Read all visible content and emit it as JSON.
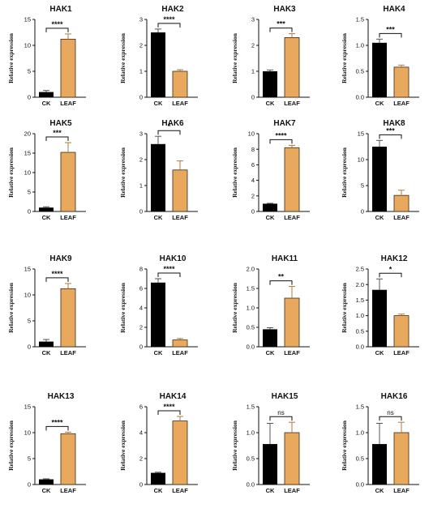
{
  "chart_data": [
    {
      "type": "bar",
      "title": "HAK1",
      "ylabel": "Relative expression",
      "categories": [
        "CK",
        "LEAF"
      ],
      "values": [
        1.0,
        11.2
      ],
      "errors": [
        0.3,
        1.0
      ],
      "ylim": [
        0,
        15
      ],
      "yticks": [
        0,
        5,
        10,
        15
      ],
      "significance": "****"
    },
    {
      "type": "bar",
      "title": "HAK2",
      "ylabel": "Relative expression",
      "categories": [
        "CK",
        "LEAF"
      ],
      "values": [
        2.5,
        1.0
      ],
      "errors": [
        0.13,
        0.06
      ],
      "ylim": [
        0,
        3
      ],
      "yticks": [
        0,
        1,
        2,
        3
      ],
      "significance": "****"
    },
    {
      "type": "bar",
      "title": "HAK3",
      "ylabel": "Relative expression",
      "categories": [
        "CK",
        "LEAF"
      ],
      "values": [
        1.0,
        2.3
      ],
      "errors": [
        0.05,
        0.15
      ],
      "ylim": [
        0,
        3
      ],
      "yticks": [
        0,
        1,
        2,
        3
      ],
      "significance": "***"
    },
    {
      "type": "bar",
      "title": "HAK4",
      "ylabel": "Relative expression",
      "categories": [
        "CK",
        "LEAF"
      ],
      "values": [
        1.05,
        0.58
      ],
      "errors": [
        0.07,
        0.04
      ],
      "ylim": [
        0,
        1.5
      ],
      "yticks": [
        "0.0",
        "0.5",
        "1.0",
        "1.5"
      ],
      "significance": "***"
    },
    {
      "type": "bar",
      "title": "HAK5",
      "ylabel": "Relative expression",
      "categories": [
        "CK",
        "LEAF"
      ],
      "values": [
        1.0,
        15.2
      ],
      "errors": [
        0.2,
        2.5
      ],
      "ylim": [
        0,
        20
      ],
      "yticks": [
        0,
        5,
        10,
        15,
        20
      ],
      "significance": "***"
    },
    {
      "type": "bar",
      "title": "HAK6",
      "ylabel": "Relative expression",
      "categories": [
        "CK",
        "LEAF"
      ],
      "values": [
        2.6,
        1.6
      ],
      "errors": [
        0.3,
        0.35
      ],
      "ylim": [
        0,
        3
      ],
      "yticks": [
        0,
        1,
        2,
        3
      ],
      "significance": "*"
    },
    {
      "type": "bar",
      "title": "HAK7",
      "ylabel": "Relative expression",
      "categories": [
        "CK",
        "LEAF"
      ],
      "values": [
        1.0,
        8.2
      ],
      "errors": [
        0.05,
        0.3
      ],
      "ylim": [
        0,
        10
      ],
      "yticks": [
        0,
        2,
        4,
        6,
        8,
        10
      ],
      "significance": "****"
    },
    {
      "type": "bar",
      "title": "HAK8",
      "ylabel": "Relative expression",
      "categories": [
        "CK",
        "LEAF"
      ],
      "values": [
        12.5,
        3.1
      ],
      "errors": [
        1.2,
        1.0
      ],
      "ylim": [
        0,
        15
      ],
      "yticks": [
        0,
        5,
        10,
        15
      ],
      "significance": "***"
    },
    {
      "type": "bar",
      "title": "HAK9",
      "ylabel": "Relative expression",
      "categories": [
        "CK",
        "LEAF"
      ],
      "values": [
        1.0,
        11.2
      ],
      "errors": [
        0.4,
        1.0
      ],
      "ylim": [
        0,
        15
      ],
      "yticks": [
        0,
        5,
        10,
        15
      ],
      "significance": "****"
    },
    {
      "type": "bar",
      "title": "HAK10",
      "ylabel": "Relative expression",
      "categories": [
        "CK",
        "LEAF"
      ],
      "values": [
        6.6,
        0.7
      ],
      "errors": [
        0.4,
        0.15
      ],
      "ylim": [
        0,
        8
      ],
      "yticks": [
        0,
        2,
        4,
        6,
        8
      ],
      "significance": "****"
    },
    {
      "type": "bar",
      "title": "HAK11",
      "ylabel": "Relative expression",
      "categories": [
        "CK",
        "LEAF"
      ],
      "values": [
        0.45,
        1.25
      ],
      "errors": [
        0.04,
        0.3
      ],
      "ylim": [
        0,
        2
      ],
      "yticks": [
        "0.0",
        "0.5",
        "1.0",
        "1.5",
        "2.0"
      ],
      "significance": "**"
    },
    {
      "type": "bar",
      "title": "HAK12",
      "ylabel": "Relative expression",
      "categories": [
        "CK",
        "LEAF"
      ],
      "values": [
        1.83,
        1.0
      ],
      "errors": [
        0.35,
        0.05
      ],
      "ylim": [
        0,
        2.5
      ],
      "yticks": [
        "0.0",
        "0.5",
        "1.0",
        "1.5",
        "2.0",
        "2.5"
      ],
      "significance": "*"
    },
    {
      "type": "bar",
      "title": "HAK13",
      "ylabel": "Relative expression",
      "categories": [
        "CK",
        "LEAF"
      ],
      "values": [
        1.0,
        9.8
      ],
      "errors": [
        0.1,
        0.3
      ],
      "ylim": [
        0,
        15
      ],
      "yticks": [
        0,
        5,
        10,
        15
      ],
      "significance": "****"
    },
    {
      "type": "bar",
      "title": "HAK14",
      "ylabel": "Relative expression",
      "categories": [
        "CK",
        "LEAF"
      ],
      "values": [
        0.9,
        4.9
      ],
      "errors": [
        0.05,
        0.35
      ],
      "ylim": [
        0,
        6
      ],
      "yticks": [
        0,
        2,
        4,
        6
      ],
      "significance": "****"
    },
    {
      "type": "bar",
      "title": "HAK15",
      "ylabel": "Relative expression",
      "categories": [
        "CK",
        "LEAF"
      ],
      "values": [
        0.78,
        1.0
      ],
      "errors": [
        0.4,
        0.2
      ],
      "ylim": [
        0,
        1.5
      ],
      "yticks": [
        "0.0",
        "0.5",
        "1.0",
        "1.5"
      ],
      "significance": "ns"
    },
    {
      "type": "bar",
      "title": "HAK16",
      "ylabel": "Relative expression",
      "categories": [
        "CK",
        "LEAF"
      ],
      "values": [
        0.78,
        1.0
      ],
      "errors": [
        0.4,
        0.2
      ],
      "ylim": [
        0,
        1.5
      ],
      "yticks": [
        "0.0",
        "0.5",
        "1.0",
        "1.5"
      ],
      "significance": "ns"
    }
  ],
  "colors": {
    "CK": "#000000",
    "LEAF": "#E8A95E",
    "LEAF_stroke": "#3a2a12",
    "axis": "#111111"
  }
}
